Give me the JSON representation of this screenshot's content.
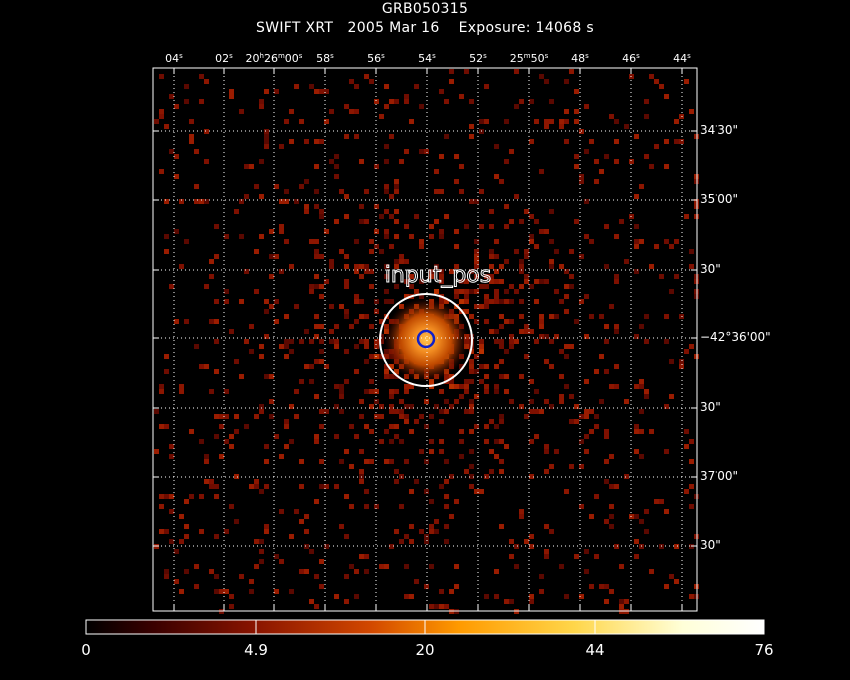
{
  "header": {
    "title": "GRB050315",
    "subtitle": "SWIFT XRT   2005 Mar 16    Exposure: 14068 s"
  },
  "ra_ticks": [
    {
      "text": "04",
      "unit": "s"
    },
    {
      "text": "02",
      "unit": "s"
    },
    {
      "text": "20h26m00",
      "parts": [
        "20",
        "h",
        "26",
        "m",
        "00",
        "s"
      ]
    },
    {
      "text": "58",
      "unit": "s"
    },
    {
      "text": "56",
      "unit": "s"
    },
    {
      "text": "54",
      "unit": "s"
    },
    {
      "text": "52",
      "unit": "s"
    },
    {
      "text": "25m50",
      "parts": [
        "25",
        "m",
        "50",
        "s"
      ]
    },
    {
      "text": "48",
      "unit": "s"
    },
    {
      "text": "46",
      "unit": "s"
    },
    {
      "text": "44",
      "unit": "s"
    }
  ],
  "dec_ticks": [
    {
      "main": "34",
      "sup": "'",
      "rest": "30\""
    },
    {
      "main": "35",
      "sup": "'",
      "rest": "00\""
    },
    {
      "main": "30\"",
      "sup": "",
      "rest": ""
    },
    {
      "main": "−42°36'00\"",
      "sup": "",
      "rest": ""
    },
    {
      "main": "30\"",
      "sup": "",
      "rest": ""
    },
    {
      "main": "37",
      "sup": "'",
      "rest": "00\""
    },
    {
      "main": "30\"",
      "sup": "",
      "rest": ""
    }
  ],
  "source": {
    "label": "input_pos"
  },
  "colorbar": {
    "ticks": [
      "0",
      "4.9",
      "20",
      "44",
      "76"
    ],
    "stops": [
      "#000000",
      "#3a0000",
      "#8a1400",
      "#d24800",
      "#ff9a00",
      "#ffd64a",
      "#ffffd8",
      "#ffffff"
    ]
  },
  "colors": {
    "frame": "#ffffff",
    "grid": "#ffffff",
    "circle_outer": "#ffffff",
    "circle_inner": "#1020c8"
  }
}
